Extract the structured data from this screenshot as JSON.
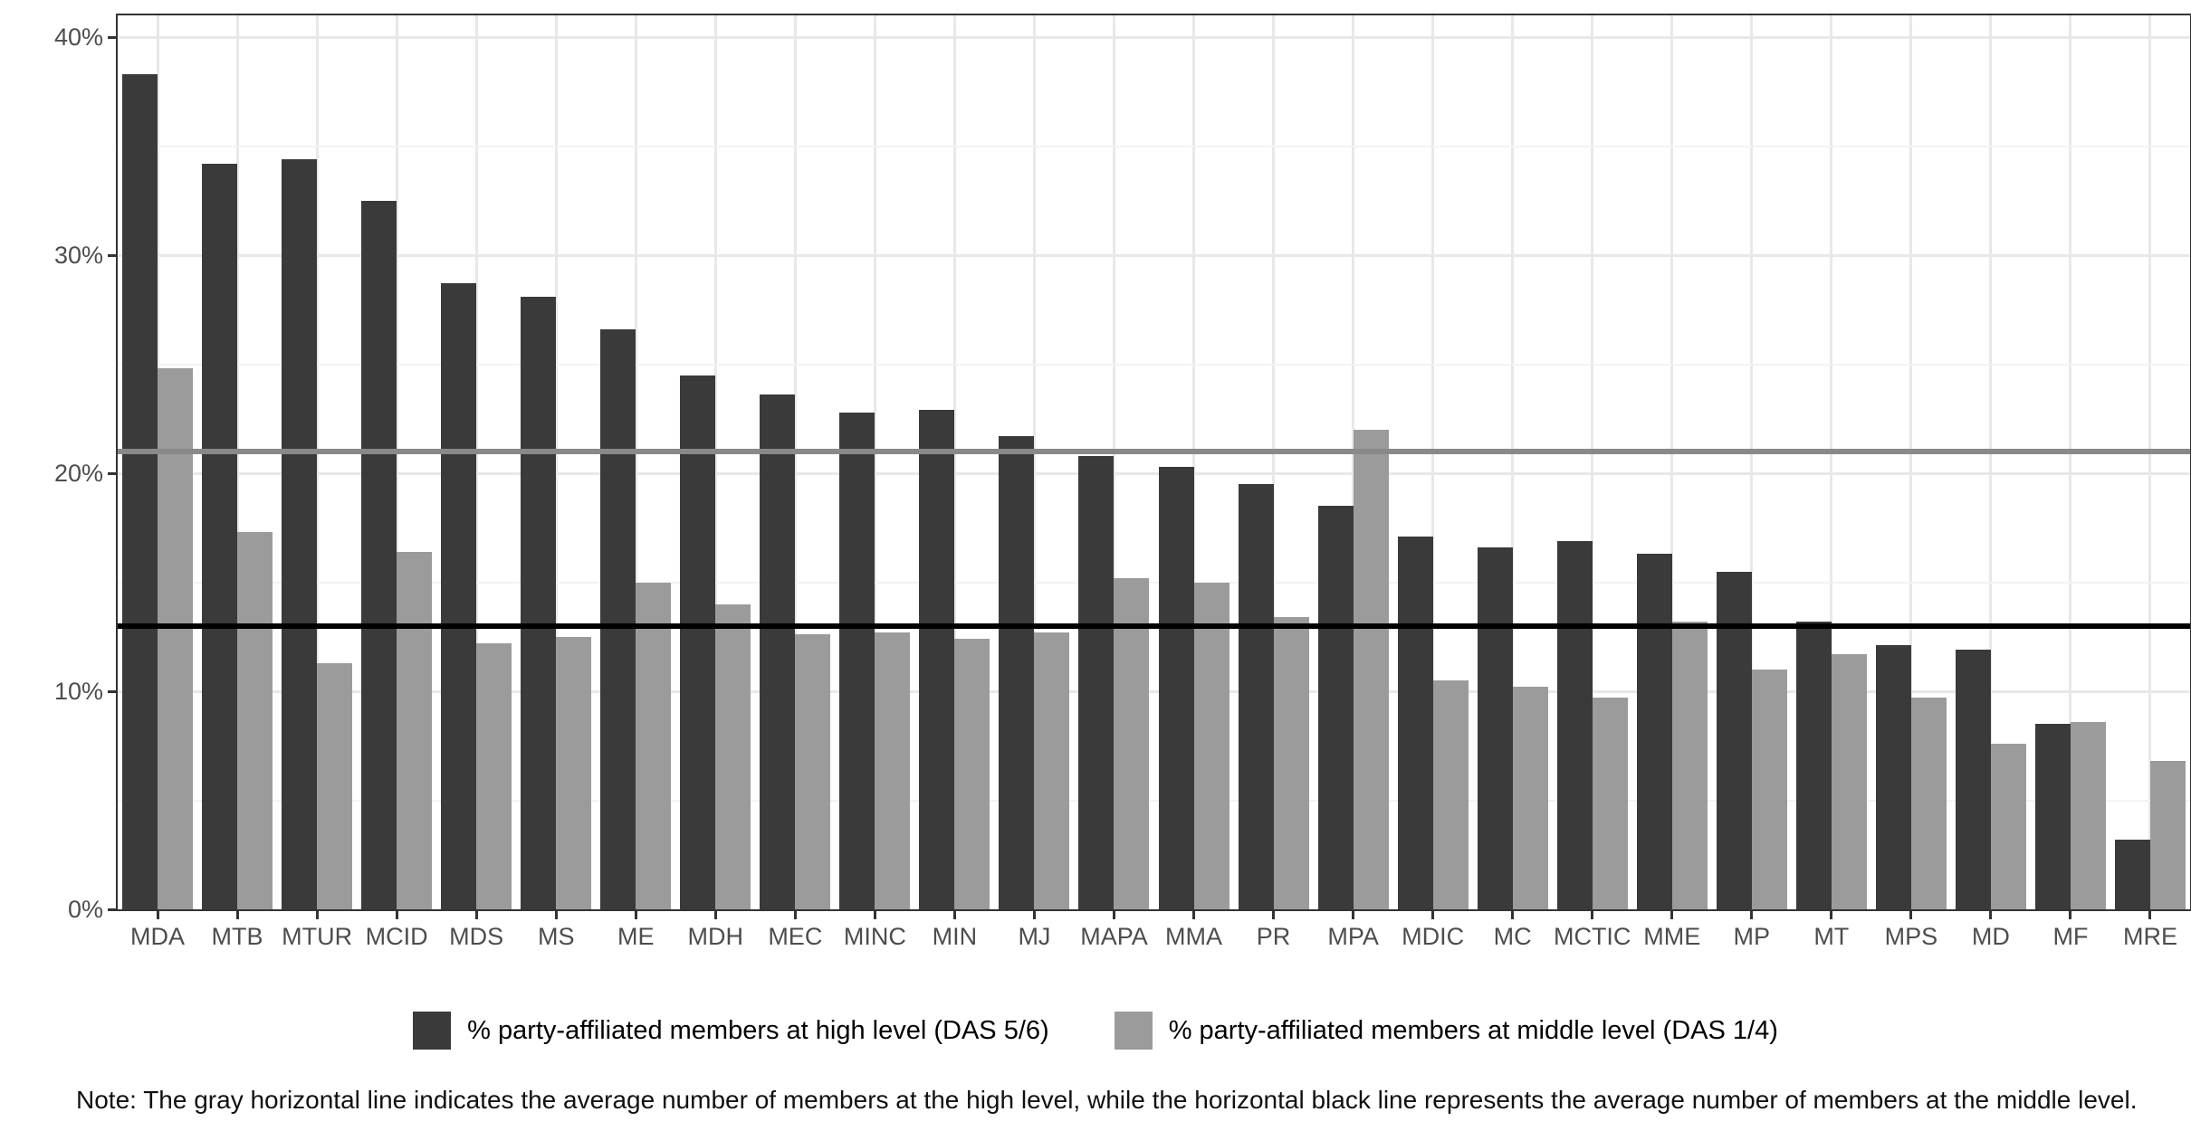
{
  "note": "Note: The gray horizontal line indicates the average number of members at the high level, while the horizontal black line represents the average number of members at the middle level.",
  "colors": {
    "high_bar": "#3a3a3a",
    "middle_bar": "#9b9b9b",
    "gray_reference_line": "#898989",
    "black_reference_line": "#000000"
  },
  "chart_data": {
    "type": "bar",
    "title": "",
    "xlabel": "",
    "ylabel": "",
    "categories": [
      "MDA",
      "MTB",
      "MTUR",
      "MCID",
      "MDS",
      "MS",
      "ME",
      "MDH",
      "MEC",
      "MINC",
      "MIN",
      "MJ",
      "MAPA",
      "MMA",
      "PR",
      "MPA",
      "MDIC",
      "MC",
      "MCTIC",
      "MME",
      "MP",
      "MT",
      "MPS",
      "MD",
      "MF",
      "MRE"
    ],
    "series": [
      {
        "name": "% party-affiliated members at high level (DAS 5/6)",
        "color": "#3a3a3a",
        "values": [
          38.3,
          34.2,
          34.4,
          32.5,
          28.7,
          28.1,
          26.6,
          24.5,
          23.6,
          22.8,
          22.9,
          21.7,
          20.8,
          20.3,
          19.5,
          18.5,
          17.1,
          16.6,
          16.9,
          16.3,
          15.5,
          13.2,
          12.1,
          11.9,
          8.5,
          3.2
        ]
      },
      {
        "name": "% party-affiliated members at middle level (DAS 1/4)",
        "color": "#9b9b9b",
        "values": [
          24.8,
          17.3,
          11.3,
          16.4,
          12.2,
          12.5,
          15.0,
          14.0,
          12.6,
          12.7,
          12.4,
          12.7,
          15.2,
          15.0,
          13.4,
          22.0,
          10.5,
          10.2,
          9.7,
          13.2,
          11.0,
          11.7,
          9.7,
          7.6,
          8.6,
          6.8
        ]
      }
    ],
    "reference_lines": [
      {
        "label": "average % of members at the high level",
        "value": 21.0,
        "color": "#898989"
      },
      {
        "label": "average % of members at the middle level",
        "value": 13.0,
        "color": "#000000"
      }
    ],
    "y_ticks": [
      "0%",
      "10%",
      "20%",
      "30%",
      "40%"
    ],
    "ylim": [
      0,
      41
    ],
    "grid": true,
    "legend_position": "bottom"
  }
}
